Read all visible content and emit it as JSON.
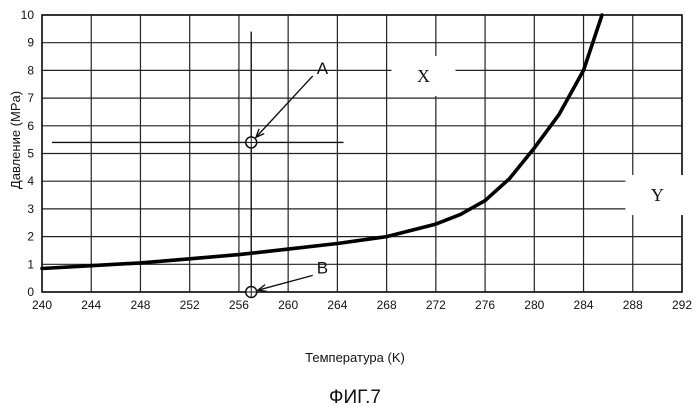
{
  "chart_data": {
    "type": "line",
    "xlabel": "Температура (K)",
    "ylabel": "Давление (MPa)",
    "caption": "ФИГ.7",
    "xlim": [
      240,
      292
    ],
    "ylim": [
      0,
      10
    ],
    "x_ticks": [
      240,
      244,
      248,
      252,
      256,
      260,
      264,
      268,
      272,
      276,
      280,
      284,
      288,
      292
    ],
    "y_ticks": [
      0,
      1,
      2,
      3,
      4,
      5,
      6,
      7,
      8,
      9,
      10
    ],
    "grid": true,
    "series": [
      {
        "name": "boundary-curve",
        "x": [
          240,
          244,
          248,
          252,
          256,
          260,
          264,
          268,
          272,
          274,
          276,
          278,
          280,
          282,
          284,
          285.5
        ],
        "y": [
          0.85,
          0.95,
          1.05,
          1.2,
          1.35,
          1.55,
          1.75,
          2.0,
          2.45,
          2.8,
          3.3,
          4.1,
          5.2,
          6.4,
          8.0,
          10.0
        ]
      }
    ],
    "regions": [
      {
        "label": "X",
        "x": 271,
        "y": 7.8
      },
      {
        "label": "Y",
        "x": 290,
        "y": 3.5
      }
    ],
    "annotations": [
      {
        "label": "A",
        "point_x": 257,
        "point_y": 5.4,
        "text_x": 262,
        "text_y": 7.8
      },
      {
        "label": "B",
        "point_x": 257,
        "point_y": 0,
        "text_x": 262,
        "text_y": 0.6
      }
    ]
  }
}
